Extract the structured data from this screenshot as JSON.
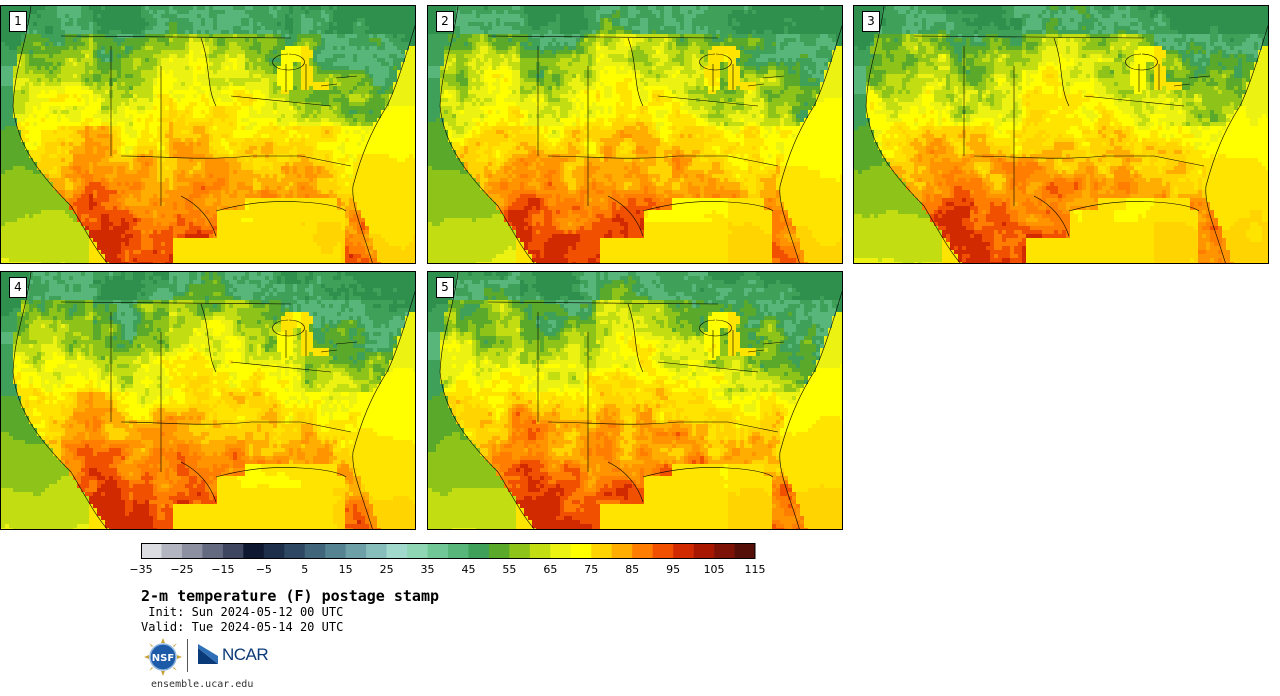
{
  "panels": [
    {
      "label": "1",
      "variant": 0
    },
    {
      "label": "2",
      "variant": 1
    },
    {
      "label": "3",
      "variant": 2
    },
    {
      "label": "4",
      "variant": 3
    },
    {
      "label": "5",
      "variant": 4
    }
  ],
  "colorbar": {
    "colors": [
      "#dcdde3",
      "#b3b6c1",
      "#8c90a1",
      "#646a80",
      "#3e4660",
      "#0e1830",
      "#1e2f4c",
      "#2e4863",
      "#41657a",
      "#558391",
      "#6ea0a8",
      "#87bdbb",
      "#a1dacd",
      "#8ed6b4",
      "#72c797",
      "#58b67a",
      "#3fa05a",
      "#5aa92a",
      "#8ec41a",
      "#c2dd12",
      "#ecf313",
      "#ffff00",
      "#ffd400",
      "#ffad00",
      "#ff7d00",
      "#f05000",
      "#d22a00",
      "#a81800",
      "#7d1206",
      "#541008"
    ],
    "tick_labels": [
      "−35",
      "−25",
      "−15",
      "−5",
      "5",
      "15",
      "25",
      "35",
      "45",
      "55",
      "65",
      "75",
      "85",
      "95",
      "105",
      "115"
    ]
  },
  "title": "2-m temperature (F) postage stamp",
  "init": " Init: Sun 2024-05-12 00 UTC",
  "valid": "Valid: Tue 2024-05-14 20 UTC",
  "logos": {
    "agency": "NSF",
    "org": "NCAR"
  },
  "site": "ensemble.ucar.edu"
}
